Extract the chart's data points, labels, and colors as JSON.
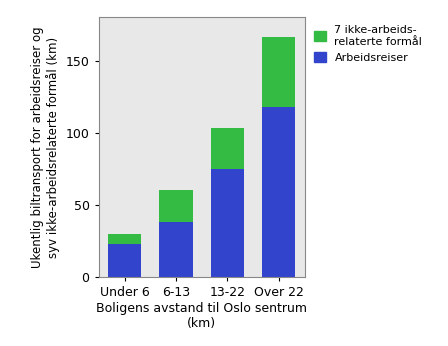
{
  "categories": [
    "Under 6",
    "6-13",
    "13-22",
    "Over 22"
  ],
  "arbeidsreiser": [
    23,
    38,
    75,
    118
  ],
  "ikke_arbeidsrelaterte": [
    7,
    22,
    28,
    48
  ],
  "bar_color_blue": "#3344CC",
  "bar_color_green": "#33BB44",
  "ylabel": "Ukentlig biltransport for arbeidsreiser og\nsyv ikke-arbeidsrelaterte formål (km)",
  "xlabel": "Boligens avstand til Oslo sentrum\n(km)",
  "legend_label_green": "7 ikke-arbeids-\nrelaterte formål",
  "legend_label_blue": "Arbeidsreiser",
  "ylim": [
    0,
    180
  ],
  "yticks": [
    0,
    50,
    100,
    150
  ],
  "background_color": "#E8E8E8",
  "bar_width": 0.65,
  "figsize": [
    4.48,
    3.46
  ],
  "dpi": 100
}
